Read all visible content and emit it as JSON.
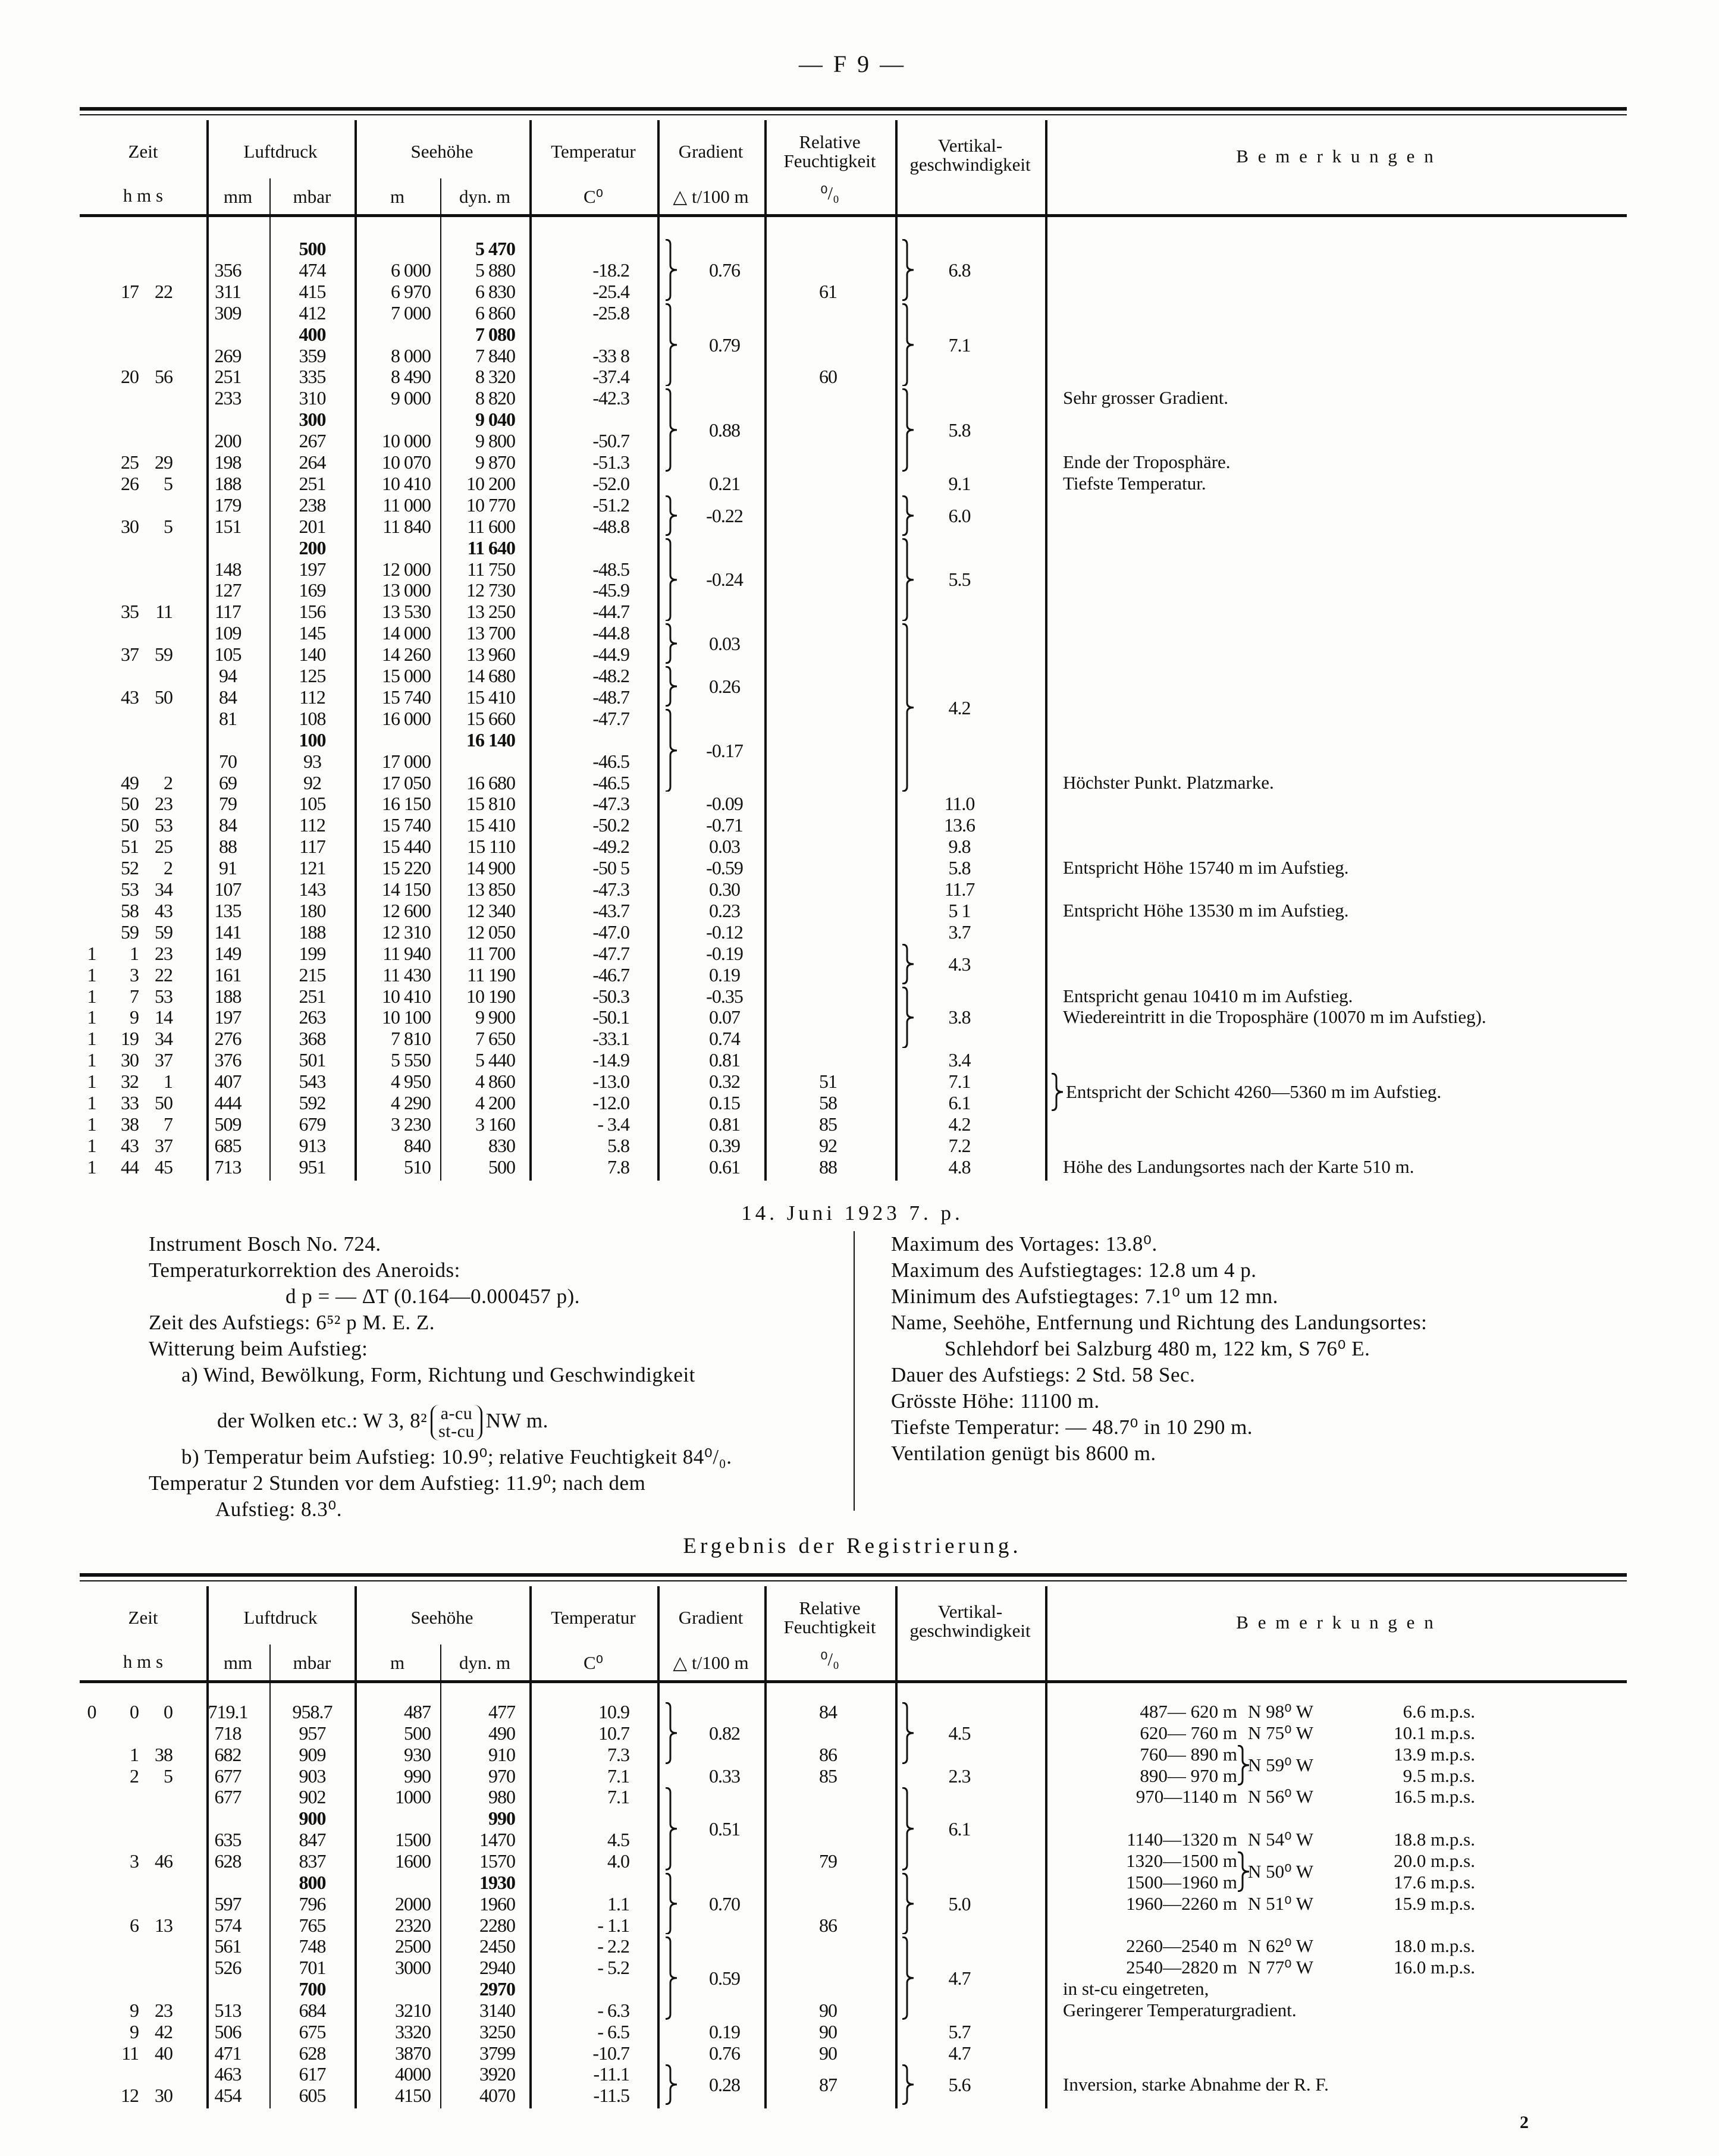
{
  "page_header": "— F 9 —",
  "page_number": "2",
  "headers": {
    "zeit": "Zeit",
    "hms": "h m s",
    "luftdruck": "Luftdruck",
    "mm": "mm",
    "mbar": "mbar",
    "seehoehe": "Seehöhe",
    "m": "m",
    "dyn_m": "dyn. m",
    "temperatur": "Temperatur",
    "celsius": "C⁰",
    "gradient": "Gradient",
    "gradient_unit": "△ t/100 m",
    "feuchte_1": "Relative",
    "feuchte_2": "Feuchtigkeit",
    "percent": "⁰/₀",
    "vertikal_1": "Vertikal-",
    "vertikal_2": "geschwindigkeit",
    "bemerkungen": "B e m e r k u n g e n"
  },
  "top_table": {
    "standard_level_rows": [
      0,
      4,
      8,
      14,
      23
    ],
    "rows": [
      [
        "",
        "",
        "",
        "",
        "500",
        "",
        "5 470",
        ""
      ],
      [
        "",
        "",
        "",
        "356",
        "474",
        "6 000",
        "5 880",
        "-18.2"
      ],
      [
        "",
        "17",
        "22",
        "311",
        "415",
        "6 970",
        "6 830",
        "-25.4"
      ],
      [
        "",
        "",
        "",
        "309",
        "412",
        "7 000",
        "6 860",
        "-25.8"
      ],
      [
        "",
        "",
        "",
        "",
        "400",
        "",
        "7 080",
        ""
      ],
      [
        "",
        "",
        "",
        "269",
        "359",
        "8 000",
        "7 840",
        "-33 8"
      ],
      [
        "",
        "20",
        "56",
        "251",
        "335",
        "8 490",
        "8 320",
        "-37.4"
      ],
      [
        "",
        "",
        "",
        "233",
        "310",
        "9 000",
        "8 820",
        "-42.3"
      ],
      [
        "",
        "",
        "",
        "",
        "300",
        "",
        "9 040",
        ""
      ],
      [
        "",
        "",
        "",
        "200",
        "267",
        "10 000",
        "9 800",
        "-50.7"
      ],
      [
        "",
        "25",
        "29",
        "198",
        "264",
        "10 070",
        "9 870",
        "-51.3"
      ],
      [
        "",
        "26",
        "5",
        "188",
        "251",
        "10 410",
        "10 200",
        "-52.0"
      ],
      [
        "",
        "",
        "",
        "179",
        "238",
        "11 000",
        "10 770",
        "-51.2"
      ],
      [
        "",
        "30",
        "5",
        "151",
        "201",
        "11 840",
        "11 600",
        "-48.8"
      ],
      [
        "",
        "",
        "",
        "",
        "200",
        "",
        "11 640",
        ""
      ],
      [
        "",
        "",
        "",
        "148",
        "197",
        "12 000",
        "11 750",
        "-48.5"
      ],
      [
        "",
        "",
        "",
        "127",
        "169",
        "13 000",
        "12 730",
        "-45.9"
      ],
      [
        "",
        "35",
        "11",
        "117",
        "156",
        "13 530",
        "13 250",
        "-44.7"
      ],
      [
        "",
        "",
        "",
        "109",
        "145",
        "14 000",
        "13 700",
        "-44.8"
      ],
      [
        "",
        "37",
        "59",
        "105",
        "140",
        "14 260",
        "13 960",
        "-44.9"
      ],
      [
        "",
        "",
        "",
        "94",
        "125",
        "15 000",
        "14 680",
        "-48.2"
      ],
      [
        "",
        "43",
        "50",
        "84",
        "112",
        "15 740",
        "15 410",
        "-48.7"
      ],
      [
        "",
        "",
        "",
        "81",
        "108",
        "16 000",
        "15 660",
        "-47.7"
      ],
      [
        "",
        "",
        "",
        "",
        "100",
        "",
        "16 140",
        ""
      ],
      [
        "",
        "",
        "",
        "70",
        "93",
        "17 000",
        "",
        "-46.5"
      ],
      [
        "",
        "49",
        "2",
        "69",
        "92",
        "17 050",
        "16 680",
        "-46.5"
      ],
      [
        "",
        "50",
        "23",
        "79",
        "105",
        "16 150",
        "15 810",
        "-47.3"
      ],
      [
        "",
        "50",
        "53",
        "84",
        "112",
        "15 740",
        "15 410",
        "-50.2"
      ],
      [
        "",
        "51",
        "25",
        "88",
        "117",
        "15 440",
        "15 110",
        "-49.2"
      ],
      [
        "",
        "52",
        "2",
        "91",
        "121",
        "15 220",
        "14 900",
        "-50 5"
      ],
      [
        "",
        "53",
        "34",
        "107",
        "143",
        "14 150",
        "13 850",
        "-47.3"
      ],
      [
        "",
        "58",
        "43",
        "135",
        "180",
        "12 600",
        "12 340",
        "-43.7"
      ],
      [
        "",
        "59",
        "59",
        "141",
        "188",
        "12 310",
        "12 050",
        "-47.0"
      ],
      [
        "1",
        "1",
        "23",
        "149",
        "199",
        "11 940",
        "11 700",
        "-47.7"
      ],
      [
        "1",
        "3",
        "22",
        "161",
        "215",
        "11 430",
        "11 190",
        "-46.7"
      ],
      [
        "1",
        "7",
        "53",
        "188",
        "251",
        "10 410",
        "10 190",
        "-50.3"
      ],
      [
        "1",
        "9",
        "14",
        "197",
        "263",
        "10 100",
        "9 900",
        "-50.1"
      ],
      [
        "1",
        "19",
        "34",
        "276",
        "368",
        "7 810",
        "7 650",
        "-33.1"
      ],
      [
        "1",
        "30",
        "37",
        "376",
        "501",
        "5 550",
        "5 440",
        "-14.9"
      ],
      [
        "1",
        "32",
        "1",
        "407",
        "543",
        "4 950",
        "4 860",
        "-13.0"
      ],
      [
        "1",
        "33",
        "50",
        "444",
        "592",
        "4 290",
        "4 200",
        "-12.0"
      ],
      [
        "1",
        "38",
        "7",
        "509",
        "679",
        "3 230",
        "3 160",
        "- 3.4"
      ],
      [
        "1",
        "43",
        "37",
        "685",
        "913",
        "840",
        "830",
        "5.8"
      ],
      [
        "1",
        "44",
        "45",
        "713",
        "951",
        "510",
        "500",
        "7.8"
      ]
    ],
    "gradient": [
      {
        "v": "0.76",
        "from": 0,
        "to": 2,
        "brace": true
      },
      {
        "v": "0.79",
        "from": 3,
        "to": 6,
        "brace": true
      },
      {
        "v": "0.88",
        "from": 7,
        "to": 10,
        "brace": true
      },
      {
        "v": "0.21",
        "from": 11,
        "to": 11
      },
      {
        "v": "-0.22",
        "from": 12,
        "to": 13,
        "brace": true
      },
      {
        "v": "-0.24",
        "from": 14,
        "to": 17,
        "brace": true
      },
      {
        "v": "0.03",
        "from": 18,
        "to": 19,
        "brace": true
      },
      {
        "v": "0.26",
        "from": 20,
        "to": 21,
        "brace": true
      },
      {
        "v": "-0.17",
        "from": 22,
        "to": 25,
        "brace": true
      },
      {
        "v": "-0.09",
        "from": 26,
        "to": 26
      },
      {
        "v": "-0.71",
        "from": 27,
        "to": 27
      },
      {
        "v": "0.03",
        "from": 28,
        "to": 28
      },
      {
        "v": "-0.59",
        "from": 29,
        "to": 29
      },
      {
        "v": "0.30",
        "from": 30,
        "to": 30
      },
      {
        "v": "0.23",
        "from": 31,
        "to": 31
      },
      {
        "v": "-0.12",
        "from": 32,
        "to": 32
      },
      {
        "v": "-0.19",
        "from": 33,
        "to": 33
      },
      {
        "v": "0.19",
        "from": 34,
        "to": 34
      },
      {
        "v": "-0.35",
        "from": 35,
        "to": 35
      },
      {
        "v": "0.07",
        "from": 36,
        "to": 36
      },
      {
        "v": "0.74",
        "from": 37,
        "to": 37
      },
      {
        "v": "0.81",
        "from": 38,
        "to": 38
      },
      {
        "v": "0.32",
        "from": 39,
        "to": 39
      },
      {
        "v": "0.15",
        "from": 40,
        "to": 40
      },
      {
        "v": "0.81",
        "from": 41,
        "to": 41
      },
      {
        "v": "0.39",
        "from": 42,
        "to": 42
      },
      {
        "v": "0.61",
        "from": 43,
        "to": 43
      }
    ],
    "feuchte": [
      {
        "v": "61",
        "from": 2,
        "to": 2
      },
      {
        "v": "60",
        "from": 6,
        "to": 6
      },
      {
        "v": "51",
        "from": 39,
        "to": 39
      },
      {
        "v": "58",
        "from": 40,
        "to": 40
      },
      {
        "v": "85",
        "from": 41,
        "to": 41
      },
      {
        "v": "92",
        "from": 42,
        "to": 42
      },
      {
        "v": "88",
        "from": 43,
        "to": 43
      }
    ],
    "vertikal": [
      {
        "v": "6.8",
        "from": 0,
        "to": 2,
        "brace": true
      },
      {
        "v": "7.1",
        "from": 3,
        "to": 6,
        "brace": true
      },
      {
        "v": "5.8",
        "from": 7,
        "to": 10,
        "brace": true
      },
      {
        "v": "9.1",
        "from": 11,
        "to": 11
      },
      {
        "v": "6.0",
        "from": 12,
        "to": 13,
        "brace": true
      },
      {
        "v": "5.5",
        "from": 14,
        "to": 17,
        "brace": true
      },
      {
        "v": "4.2",
        "from": 18,
        "to": 25,
        "brace": true
      },
      {
        "v": "11.0",
        "from": 26,
        "to": 26
      },
      {
        "v": "13.6",
        "from": 27,
        "to": 27
      },
      {
        "v": "9.8",
        "from": 28,
        "to": 28
      },
      {
        "v": "5.8",
        "from": 29,
        "to": 29
      },
      {
        "v": "11.7",
        "from": 30,
        "to": 30
      },
      {
        "v": "5 1",
        "from": 31,
        "to": 31
      },
      {
        "v": "3.7",
        "from": 32,
        "to": 32
      },
      {
        "v": "4.3",
        "from": 33,
        "to": 34,
        "brace": true
      },
      {
        "v": "3.8",
        "from": 35,
        "to": 37,
        "brace": true
      },
      {
        "v": "3.4",
        "from": 38,
        "to": 38
      },
      {
        "v": "7.1",
        "from": 39,
        "to": 39
      },
      {
        "v": "6.1",
        "from": 40,
        "to": 40
      },
      {
        "v": "4.2",
        "from": 41,
        "to": 41
      },
      {
        "v": "7.2",
        "from": 42,
        "to": 42
      },
      {
        "v": "4.8",
        "from": 43,
        "to": 43
      }
    ],
    "remarks": [
      {
        "v": "Sehr grosser Gradient.",
        "from": 7,
        "to": 7
      },
      {
        "v": "Ende der Troposphäre.",
        "from": 10,
        "to": 10
      },
      {
        "v": "Tiefste Temperatur.",
        "from": 11,
        "to": 11
      },
      {
        "v": "Höchster Punkt.  Platzmarke.",
        "from": 25,
        "to": 25
      },
      {
        "v": "Entspricht Höhe 15740 m im Aufstieg.",
        "from": 29,
        "to": 29
      },
      {
        "v": "Entspricht Höhe 13530 m im Aufstieg.",
        "from": 31,
        "to": 31
      },
      {
        "v": "Entspricht genau 10410 m im Aufstieg.",
        "from": 35,
        "to": 35
      },
      {
        "v": "Wiedereintritt in die Troposphäre (10070 m im Aufstieg).",
        "from": 36,
        "to": 36
      },
      {
        "v": "Entspricht der Schicht 4260—5360 m im Aufstieg.",
        "from": 39,
        "to": 40,
        "brace": true
      },
      {
        "v": "Höhe des Landungsortes nach der Karte 510 m.",
        "from": 43,
        "to": 43
      }
    ]
  },
  "ascent_info": {
    "date": "14. Juni 1923 7. p.",
    "left": [
      "Instrument Bosch No. 724.",
      "Temperaturkorrektion des Aneroids:",
      "d p = — ΔT (0.164—0.000457 p).",
      "Zeit des Aufstiegs: 6⁵² p M. E. Z.",
      "Witterung beim Aufstieg:",
      "a) Wind, Bewölkung, Form, Richtung und Geschwindigkeit"
    ],
    "clouds_prefix": "der Wolken etc.: W 3, 8²",
    "clouds_upper": "a-cu",
    "clouds_lower": "st-cu",
    "clouds_suffix": "NW m.",
    "left_after": [
      "b) Temperatur beim Aufstieg: 10.9⁰; relative Feuchtigkeit 84⁰/₀.",
      "Temperatur 2 Stunden vor dem Aufstieg: 11.9⁰; nach dem",
      "Aufstieg: 8.3⁰."
    ],
    "right": [
      "Maximum des Vortages: 13.8⁰.",
      "Maximum des Aufstiegtages: 12.8 um 4 p.",
      "Minimum des Aufstiegtages: 7.1⁰ um 12 mn.",
      "Name, Seehöhe, Entfernung und Richtung des Landungsortes:",
      "Schlehdorf bei Salzburg 480 m, 122 km, S 76⁰ E.",
      "Dauer des Aufstiegs: 2 Std. 58 Sec.",
      "Grösste Höhe: 11100 m.",
      "Tiefste Temperatur: — 48.7⁰ in 10 290 m.",
      "Ventilation genügt bis 8600 m."
    ]
  },
  "section_title": "Ergebnis der Registrierung.",
  "bottom_table": {
    "standard_level_rows": [
      5,
      8,
      13
    ],
    "rows": [
      [
        "0",
        "0",
        "0",
        "719.1",
        "958.7",
        "487",
        "477",
        "10.9"
      ],
      [
        "",
        "",
        "",
        "718",
        "957",
        "500",
        "490",
        "10.7"
      ],
      [
        "",
        "1",
        "38",
        "682",
        "909",
        "930",
        "910",
        "7.3"
      ],
      [
        "",
        "2",
        "5",
        "677",
        "903",
        "990",
        "970",
        "7.1"
      ],
      [
        "",
        "",
        "",
        "677",
        "902",
        "1000",
        "980",
        "7.1"
      ],
      [
        "",
        "",
        "",
        "",
        "900",
        "",
        "990",
        ""
      ],
      [
        "",
        "",
        "",
        "635",
        "847",
        "1500",
        "1470",
        "4.5"
      ],
      [
        "",
        "3",
        "46",
        "628",
        "837",
        "1600",
        "1570",
        "4.0"
      ],
      [
        "",
        "",
        "",
        "",
        "800",
        "",
        "1930",
        ""
      ],
      [
        "",
        "",
        "",
        "597",
        "796",
        "2000",
        "1960",
        "1.1"
      ],
      [
        "",
        "6",
        "13",
        "574",
        "765",
        "2320",
        "2280",
        "- 1.1"
      ],
      [
        "",
        "",
        "",
        "561",
        "748",
        "2500",
        "2450",
        "- 2.2"
      ],
      [
        "",
        "",
        "",
        "526",
        "701",
        "3000",
        "2940",
        "- 5.2"
      ],
      [
        "",
        "",
        "",
        "",
        "700",
        "",
        "2970",
        ""
      ],
      [
        "",
        "9",
        "23",
        "513",
        "684",
        "3210",
        "3140",
        "- 6.3"
      ],
      [
        "",
        "9",
        "42",
        "506",
        "675",
        "3320",
        "3250",
        "- 6.5"
      ],
      [
        "",
        "11",
        "40",
        "471",
        "628",
        "3870",
        "3799",
        "-10.7"
      ],
      [
        "",
        "",
        "",
        "463",
        "617",
        "4000",
        "3920",
        "-11.1"
      ],
      [
        "",
        "12",
        "30",
        "454",
        "605",
        "4150",
        "4070",
        "-11.5"
      ]
    ],
    "gradient": [
      {
        "v": "0.82",
        "from": 0,
        "to": 2,
        "brace": true
      },
      {
        "v": "0.33",
        "from": 3,
        "to": 3
      },
      {
        "v": "0.51",
        "from": 4,
        "to": 7,
        "brace": true
      },
      {
        "v": "0.70",
        "from": 8,
        "to": 10,
        "brace": true
      },
      {
        "v": "0.59",
        "from": 11,
        "to": 14,
        "brace": true
      },
      {
        "v": "0.19",
        "from": 15,
        "to": 15
      },
      {
        "v": "0.76",
        "from": 16,
        "to": 16
      },
      {
        "v": "0.28",
        "from": 17,
        "to": 18,
        "brace": true
      }
    ],
    "feuchte": [
      {
        "v": "84",
        "from": 0,
        "to": 0
      },
      {
        "v": "86",
        "from": 2,
        "to": 2
      },
      {
        "v": "85",
        "from": 3,
        "to": 3
      },
      {
        "v": "79",
        "from": 7,
        "to": 7
      },
      {
        "v": "86",
        "from": 10,
        "to": 10
      },
      {
        "v": "90",
        "from": 14,
        "to": 14
      },
      {
        "v": "90",
        "from": 15,
        "to": 15
      },
      {
        "v": "90",
        "from": 16,
        "to": 16
      },
      {
        "v": "87",
        "from": 17,
        "to": 18
      }
    ],
    "vertikal": [
      {
        "v": "4.5",
        "from": 0,
        "to": 2,
        "brace": true
      },
      {
        "v": "2.3",
        "from": 3,
        "to": 3
      },
      {
        "v": "6.1",
        "from": 4,
        "to": 7,
        "brace": true
      },
      {
        "v": "5.0",
        "from": 8,
        "to": 10,
        "brace": true
      },
      {
        "v": "4.7",
        "from": 11,
        "to": 14,
        "brace": true
      },
      {
        "v": "5.7",
        "from": 15,
        "to": 15
      },
      {
        "v": "4.7",
        "from": 16,
        "to": 16
      },
      {
        "v": "5.6",
        "from": 17,
        "to": 18,
        "brace": true
      }
    ],
    "wind": [
      {
        "row": 0,
        "range": "487— 620 m",
        "dir": "N 98⁰ W",
        "speed": "6.6 m.p.s."
      },
      {
        "row": 1,
        "range": "620— 760 m",
        "dir": "N 75⁰ W",
        "speed": "10.1 m.p.s."
      },
      {
        "row": 2,
        "range": "760— 890 m",
        "dir": "N 59⁰ W",
        "dir_rows": 2,
        "speed": "13.9 m.p.s."
      },
      {
        "row": 3,
        "range": "890— 970 m",
        "dir": "",
        "speed": "9.5 m.p.s."
      },
      {
        "row": 4,
        "range": "970—1140 m",
        "dir": "N 56⁰ W",
        "speed": "16.5 m.p.s."
      },
      {
        "row": 6,
        "range": "1140—1320 m",
        "dir": "N 54⁰ W",
        "speed": "18.8 m.p.s."
      },
      {
        "row": 7,
        "range": "1320—1500 m",
        "dir": "N 50⁰ W",
        "dir_rows": 2,
        "speed": "20.0 m.p.s."
      },
      {
        "row": 8,
        "range": "1500—1960 m",
        "dir": "",
        "speed": "17.6 m.p.s."
      },
      {
        "row": 9,
        "range": "1960—2260 m",
        "dir": "N 51⁰ W",
        "speed": "15.9 m.p.s."
      },
      {
        "row": 11,
        "range": "2260—2540 m",
        "dir": "N 62⁰ W",
        "speed": "18.0 m.p.s."
      },
      {
        "row": 12,
        "range": "2540—2820 m",
        "dir": "N 77⁰ W",
        "speed": "16.0 m.p.s."
      }
    ],
    "remarks": [
      {
        "v": "in st-cu eingetreten,",
        "from": 13,
        "to": 13
      },
      {
        "v": "Geringerer Temperaturgradient.",
        "from": 14,
        "to": 14
      },
      {
        "v": "Inversion, starke Abnahme der R. F.",
        "from": 17,
        "to": 18
      }
    ]
  }
}
